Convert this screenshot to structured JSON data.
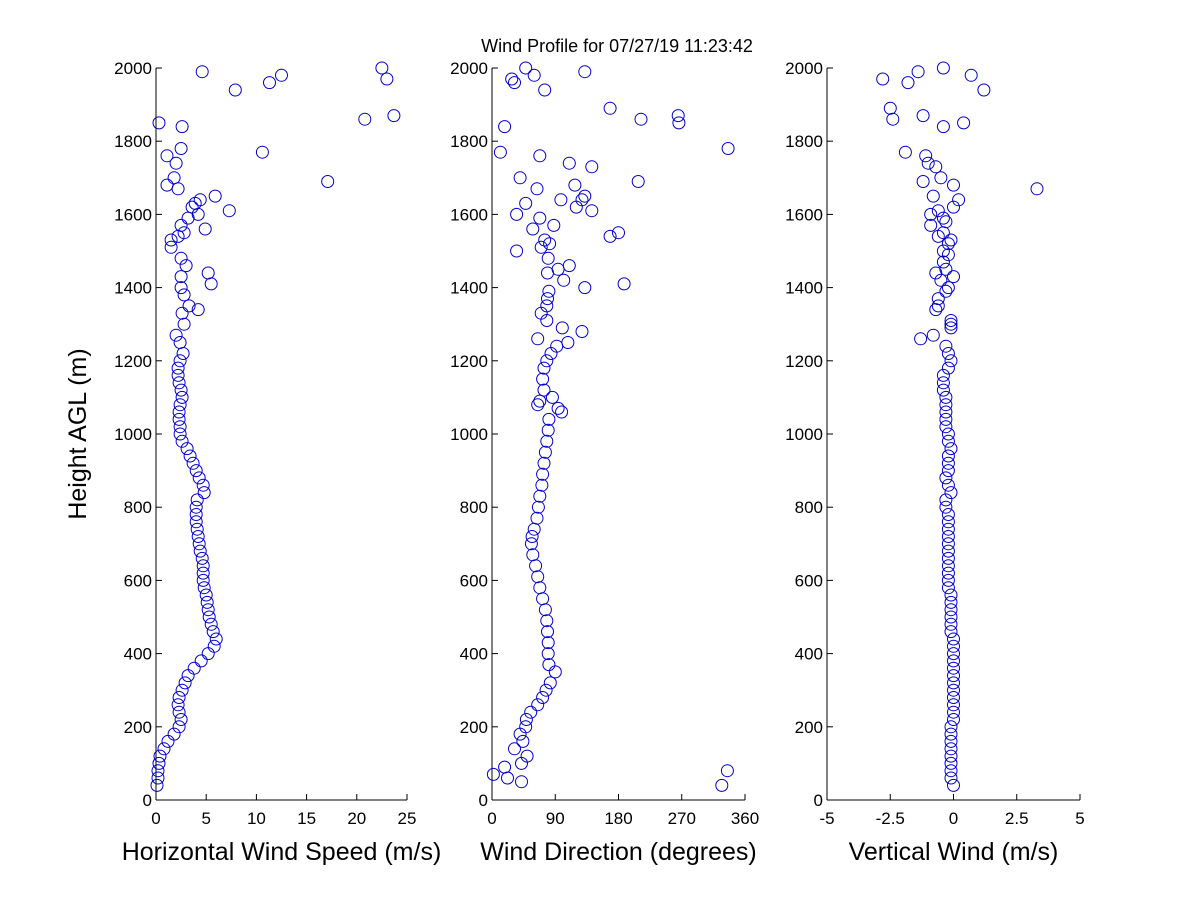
{
  "title": "Wind Profile for  07/27/19 11:23:42",
  "ylabel": "Height AGL (m)",
  "colors": {
    "marker": "#0000cc",
    "axes": "#000000",
    "background": "#ffffff"
  },
  "chart_data": [
    {
      "type": "scatter",
      "xlabel": "Horizontal Wind Speed (m/s)",
      "ylabel": "Height AGL (m)",
      "xlim": [
        0,
        25
      ],
      "ylim": [
        0,
        2000
      ],
      "xticks": [
        0,
        5,
        10,
        15,
        20,
        25
      ],
      "xtick_labels": [
        "0",
        "5",
        "10",
        "15",
        "20",
        "25"
      ],
      "yticks": [
        0,
        200,
        400,
        600,
        800,
        1000,
        1200,
        1400,
        1600,
        1800,
        2000
      ],
      "ytick_labels": [
        "0",
        "200",
        "400",
        "600",
        "800",
        "1000",
        "1200",
        "1400",
        "1600",
        "1800",
        "2000"
      ],
      "marker": "open-circle",
      "grid": false,
      "points": [
        [
          0.1,
          40
        ],
        [
          0.2,
          60
        ],
        [
          0.2,
          80
        ],
        [
          0.3,
          100
        ],
        [
          0.4,
          120
        ],
        [
          0.8,
          140
        ],
        [
          1.2,
          160
        ],
        [
          1.8,
          180
        ],
        [
          2.3,
          200
        ],
        [
          2.5,
          220
        ],
        [
          2.3,
          240
        ],
        [
          2.2,
          260
        ],
        [
          2.3,
          280
        ],
        [
          2.6,
          300
        ],
        [
          2.9,
          320
        ],
        [
          3.2,
          340
        ],
        [
          3.8,
          360
        ],
        [
          4.5,
          380
        ],
        [
          5.2,
          400
        ],
        [
          5.8,
          420
        ],
        [
          6.0,
          440
        ],
        [
          5.7,
          460
        ],
        [
          5.5,
          480
        ],
        [
          5.3,
          500
        ],
        [
          5.2,
          520
        ],
        [
          5.1,
          540
        ],
        [
          5.0,
          560
        ],
        [
          4.8,
          580
        ],
        [
          4.7,
          600
        ],
        [
          4.7,
          620
        ],
        [
          4.7,
          640
        ],
        [
          4.6,
          660
        ],
        [
          4.4,
          680
        ],
        [
          4.3,
          700
        ],
        [
          4.2,
          720
        ],
        [
          4.1,
          740
        ],
        [
          4.0,
          760
        ],
        [
          4.0,
          780
        ],
        [
          4.0,
          800
        ],
        [
          4.1,
          820
        ],
        [
          4.8,
          840
        ],
        [
          4.7,
          860
        ],
        [
          4.3,
          880
        ],
        [
          4.0,
          900
        ],
        [
          3.7,
          920
        ],
        [
          3.4,
          940
        ],
        [
          3.1,
          960
        ],
        [
          2.6,
          980
        ],
        [
          2.4,
          1000
        ],
        [
          2.4,
          1020
        ],
        [
          2.3,
          1040
        ],
        [
          2.3,
          1060
        ],
        [
          2.4,
          1080
        ],
        [
          2.6,
          1100
        ],
        [
          2.5,
          1120
        ],
        [
          2.3,
          1140
        ],
        [
          2.2,
          1160
        ],
        [
          2.2,
          1180
        ],
        [
          2.4,
          1200
        ],
        [
          2.7,
          1220
        ],
        [
          2.4,
          1250
        ],
        [
          2.0,
          1270
        ],
        [
          2.8,
          1300
        ],
        [
          2.6,
          1330
        ],
        [
          3.3,
          1350
        ],
        [
          4.2,
          1340
        ],
        [
          2.8,
          1380
        ],
        [
          2.5,
          1400
        ],
        [
          5.5,
          1410
        ],
        [
          2.5,
          1430
        ],
        [
          5.2,
          1440
        ],
        [
          3.0,
          1460
        ],
        [
          2.5,
          1480
        ],
        [
          1.5,
          1510
        ],
        [
          2.2,
          1540
        ],
        [
          1.5,
          1530
        ],
        [
          2.8,
          1550
        ],
        [
          4.9,
          1560
        ],
        [
          2.5,
          1570
        ],
        [
          3.2,
          1590
        ],
        [
          4.2,
          1600
        ],
        [
          7.3,
          1610
        ],
        [
          3.6,
          1620
        ],
        [
          3.9,
          1630
        ],
        [
          4.4,
          1640
        ],
        [
          5.9,
          1650
        ],
        [
          2.2,
          1670
        ],
        [
          1.1,
          1680
        ],
        [
          17.1,
          1690
        ],
        [
          1.8,
          1700
        ],
        [
          2.0,
          1740
        ],
        [
          1.1,
          1760
        ],
        [
          10.6,
          1770
        ],
        [
          2.5,
          1780
        ],
        [
          2.6,
          1840
        ],
        [
          0.3,
          1850
        ],
        [
          20.8,
          1860
        ],
        [
          23.7,
          1870
        ],
        [
          7.9,
          1940
        ],
        [
          11.3,
          1960
        ],
        [
          23.0,
          1970
        ],
        [
          12.5,
          1980
        ],
        [
          4.6,
          1990
        ],
        [
          22.5,
          2000
        ]
      ]
    },
    {
      "type": "scatter",
      "xlabel": "Wind Direction (degrees)",
      "ylabel": "",
      "xlim": [
        0,
        360
      ],
      "ylim": [
        0,
        2000
      ],
      "xticks": [
        0,
        90,
        180,
        270,
        360
      ],
      "xtick_labels": [
        "0",
        "90",
        "180",
        "270",
        "360"
      ],
      "yticks": [
        0,
        200,
        400,
        600,
        800,
        1000,
        1200,
        1400,
        1600,
        1800,
        2000
      ],
      "ytick_labels": [
        "0",
        "200",
        "400",
        "600",
        "800",
        "1000",
        "1200",
        "1400",
        "1600",
        "1800",
        "2000"
      ],
      "marker": "open-circle",
      "grid": false,
      "points": [
        [
          327,
          40
        ],
        [
          42,
          50
        ],
        [
          22,
          60
        ],
        [
          2,
          70
        ],
        [
          335,
          80
        ],
        [
          18,
          90
        ],
        [
          42,
          100
        ],
        [
          50,
          120
        ],
        [
          32,
          140
        ],
        [
          44,
          160
        ],
        [
          40,
          180
        ],
        [
          48,
          200
        ],
        [
          49,
          220
        ],
        [
          55,
          240
        ],
        [
          65,
          260
        ],
        [
          72,
          280
        ],
        [
          77,
          300
        ],
        [
          83,
          320
        ],
        [
          90,
          350
        ],
        [
          81,
          370
        ],
        [
          80,
          400
        ],
        [
          80,
          430
        ],
        [
          79,
          460
        ],
        [
          78,
          490
        ],
        [
          76,
          520
        ],
        [
          72,
          550
        ],
        [
          68,
          580
        ],
        [
          65,
          610
        ],
        [
          62,
          640
        ],
        [
          58,
          670
        ],
        [
          56,
          700
        ],
        [
          57,
          720
        ],
        [
          60,
          740
        ],
        [
          64,
          770
        ],
        [
          66,
          800
        ],
        [
          68,
          830
        ],
        [
          71,
          860
        ],
        [
          72,
          890
        ],
        [
          74,
          920
        ],
        [
          76,
          950
        ],
        [
          78,
          980
        ],
        [
          80,
          1010
        ],
        [
          81,
          1040
        ],
        [
          99,
          1060
        ],
        [
          94,
          1070
        ],
        [
          65,
          1080
        ],
        [
          68,
          1090
        ],
        [
          86,
          1100
        ],
        [
          74,
          1120
        ],
        [
          72,
          1150
        ],
        [
          74,
          1180
        ],
        [
          78,
          1200
        ],
        [
          84,
          1220
        ],
        [
          92,
          1240
        ],
        [
          108,
          1250
        ],
        [
          65,
          1260
        ],
        [
          128,
          1280
        ],
        [
          100,
          1290
        ],
        [
          78,
          1310
        ],
        [
          70,
          1330
        ],
        [
          78,
          1350
        ],
        [
          79,
          1370
        ],
        [
          81,
          1390
        ],
        [
          132,
          1400
        ],
        [
          188,
          1410
        ],
        [
          102,
          1420
        ],
        [
          79,
          1440
        ],
        [
          94,
          1450
        ],
        [
          110,
          1460
        ],
        [
          80,
          1480
        ],
        [
          35,
          1500
        ],
        [
          70,
          1510
        ],
        [
          82,
          1520
        ],
        [
          75,
          1530
        ],
        [
          168,
          1540
        ],
        [
          180,
          1550
        ],
        [
          58,
          1560
        ],
        [
          88,
          1570
        ],
        [
          68,
          1590
        ],
        [
          35,
          1600
        ],
        [
          142,
          1610
        ],
        [
          120,
          1620
        ],
        [
          48,
          1630
        ],
        [
          128,
          1640
        ],
        [
          98,
          1640
        ],
        [
          132,
          1650
        ],
        [
          64,
          1670
        ],
        [
          118,
          1680
        ],
        [
          208,
          1690
        ],
        [
          40,
          1700
        ],
        [
          110,
          1740
        ],
        [
          142,
          1730
        ],
        [
          68,
          1760
        ],
        [
          12,
          1770
        ],
        [
          336,
          1780
        ],
        [
          18,
          1840
        ],
        [
          266,
          1850
        ],
        [
          212,
          1860
        ],
        [
          265,
          1870
        ],
        [
          168,
          1890
        ],
        [
          75,
          1940
        ],
        [
          32,
          1960
        ],
        [
          28,
          1970
        ],
        [
          60,
          1980
        ],
        [
          132,
          1990
        ],
        [
          48,
          2000
        ]
      ]
    },
    {
      "type": "scatter",
      "xlabel": "Vertical Wind (m/s)",
      "ylabel": "",
      "xlim": [
        -5,
        5
      ],
      "ylim": [
        0,
        2000
      ],
      "xticks": [
        -5,
        -2.5,
        0,
        2.5,
        5
      ],
      "xtick_labels": [
        "-5",
        "-2.5",
        "0",
        "2.5",
        "5"
      ],
      "yticks": [
        0,
        200,
        400,
        600,
        800,
        1000,
        1200,
        1400,
        1600,
        1800,
        2000
      ],
      "ytick_labels": [
        "0",
        "200",
        "400",
        "600",
        "800",
        "1000",
        "1200",
        "1400",
        "1600",
        "1800",
        "2000"
      ],
      "marker": "open-circle",
      "grid": false,
      "points": [
        [
          0.0,
          40
        ],
        [
          -0.1,
          60
        ],
        [
          -0.1,
          80
        ],
        [
          -0.1,
          100
        ],
        [
          -0.1,
          120
        ],
        [
          -0.1,
          140
        ],
        [
          -0.1,
          160
        ],
        [
          -0.1,
          180
        ],
        [
          -0.1,
          200
        ],
        [
          0.0,
          220
        ],
        [
          0.0,
          240
        ],
        [
          0.0,
          260
        ],
        [
          0.0,
          280
        ],
        [
          0.0,
          300
        ],
        [
          0.0,
          320
        ],
        [
          0.0,
          340
        ],
        [
          0.0,
          360
        ],
        [
          0.0,
          380
        ],
        [
          0.0,
          400
        ],
        [
          0.0,
          420
        ],
        [
          0.0,
          440
        ],
        [
          -0.1,
          460
        ],
        [
          -0.1,
          480
        ],
        [
          -0.1,
          500
        ],
        [
          -0.1,
          520
        ],
        [
          -0.1,
          540
        ],
        [
          -0.1,
          560
        ],
        [
          -0.2,
          580
        ],
        [
          -0.2,
          600
        ],
        [
          -0.2,
          620
        ],
        [
          -0.2,
          640
        ],
        [
          -0.2,
          660
        ],
        [
          -0.2,
          680
        ],
        [
          -0.2,
          700
        ],
        [
          -0.2,
          720
        ],
        [
          -0.2,
          740
        ],
        [
          -0.2,
          760
        ],
        [
          -0.2,
          780
        ],
        [
          -0.3,
          800
        ],
        [
          -0.3,
          820
        ],
        [
          -0.1,
          840
        ],
        [
          -0.2,
          860
        ],
        [
          -0.3,
          880
        ],
        [
          -0.2,
          900
        ],
        [
          -0.2,
          920
        ],
        [
          -0.2,
          940
        ],
        [
          -0.1,
          960
        ],
        [
          -0.2,
          980
        ],
        [
          -0.2,
          1000
        ],
        [
          -0.3,
          1020
        ],
        [
          -0.3,
          1040
        ],
        [
          -0.3,
          1060
        ],
        [
          -0.3,
          1080
        ],
        [
          -0.3,
          1100
        ],
        [
          -0.4,
          1120
        ],
        [
          -0.4,
          1140
        ],
        [
          -0.4,
          1160
        ],
        [
          -0.2,
          1180
        ],
        [
          -0.1,
          1200
        ],
        [
          -0.2,
          1220
        ],
        [
          -0.3,
          1240
        ],
        [
          -1.3,
          1260
        ],
        [
          -0.8,
          1270
        ],
        [
          -0.1,
          1290
        ],
        [
          -0.1,
          1300
        ],
        [
          -0.1,
          1310
        ],
        [
          -0.7,
          1340
        ],
        [
          -0.6,
          1350
        ],
        [
          -0.6,
          1370
        ],
        [
          -0.3,
          1390
        ],
        [
          -0.2,
          1400
        ],
        [
          -0.5,
          1420
        ],
        [
          0.0,
          1430
        ],
        [
          -0.7,
          1440
        ],
        [
          -0.3,
          1450
        ],
        [
          -0.4,
          1470
        ],
        [
          -0.2,
          1490
        ],
        [
          -0.4,
          1500
        ],
        [
          -0.2,
          1520
        ],
        [
          -0.1,
          1530
        ],
        [
          -0.6,
          1540
        ],
        [
          -0.4,
          1550
        ],
        [
          -0.9,
          1570
        ],
        [
          -0.3,
          1580
        ],
        [
          -0.4,
          1590
        ],
        [
          -0.9,
          1600
        ],
        [
          -0.6,
          1610
        ],
        [
          0.0,
          1620
        ],
        [
          0.2,
          1640
        ],
        [
          -0.8,
          1650
        ],
        [
          3.3,
          1670
        ],
        [
          0.0,
          1680
        ],
        [
          -1.2,
          1690
        ],
        [
          -0.5,
          1700
        ],
        [
          -1.0,
          1740
        ],
        [
          -0.7,
          1730
        ],
        [
          -1.1,
          1760
        ],
        [
          -1.9,
          1770
        ],
        [
          -0.4,
          1840
        ],
        [
          0.4,
          1850
        ],
        [
          -2.4,
          1860
        ],
        [
          -1.2,
          1870
        ],
        [
          -2.5,
          1890
        ],
        [
          1.2,
          1940
        ],
        [
          -1.8,
          1960
        ],
        [
          -2.8,
          1970
        ],
        [
          0.7,
          1980
        ],
        [
          -1.4,
          1990
        ],
        [
          -0.4,
          2000
        ]
      ]
    }
  ]
}
